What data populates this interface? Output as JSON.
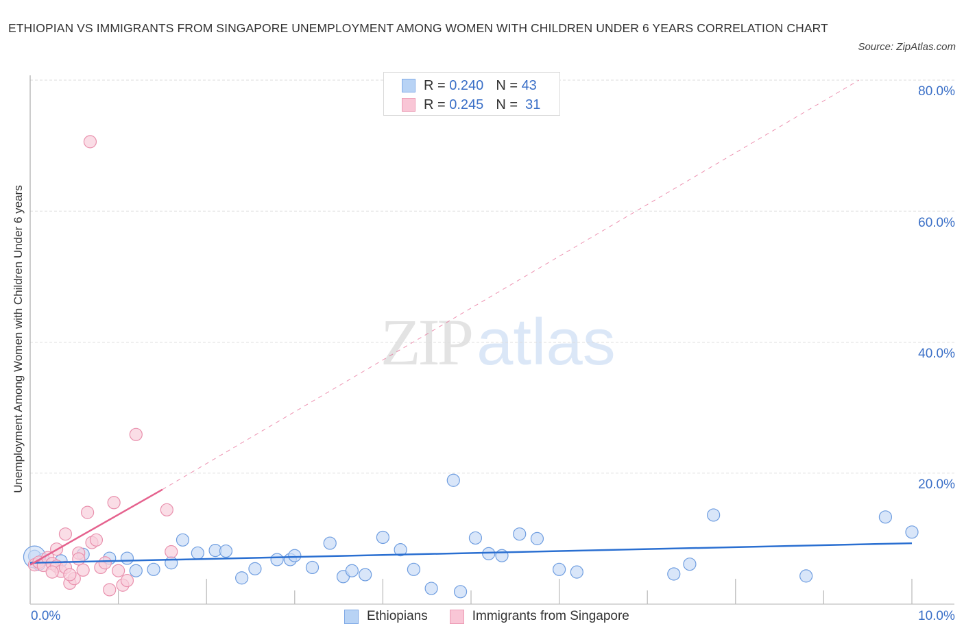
{
  "header": {
    "title": "ETHIOPIAN VS IMMIGRANTS FROM SINGAPORE UNEMPLOYMENT AMONG WOMEN WITH CHILDREN UNDER 6 YEARS CORRELATION CHART",
    "source": "Source: ZipAtlas.com"
  },
  "watermark": {
    "zip": "ZIP",
    "atlas": "atlas"
  },
  "stats_legend": {
    "rows": [
      {
        "r_label": "R =",
        "r_value": "0.240",
        "n_label": "N =",
        "n_value": "43",
        "color": "#b8d3f5",
        "border": "#7fa9e6"
      },
      {
        "r_label": "R =",
        "r_value": "0.245",
        "n_label": "N =",
        "n_value": "31",
        "color": "#f9c6d6",
        "border": "#ec9ab4"
      }
    ]
  },
  "bottom_legend": {
    "items": [
      {
        "label": "Ethiopians",
        "color": "#b8d3f5",
        "border": "#7fa9e6"
      },
      {
        "label": "Immigrants from Singapore",
        "color": "#f9c6d6",
        "border": "#ec9ab4"
      }
    ]
  },
  "axes": {
    "x_min_label": "0.0%",
    "x_max_label": "10.0%",
    "y_ticks": [
      "20.0%",
      "40.0%",
      "60.0%",
      "80.0%"
    ],
    "y_label": "Unemployment Among Women with Children Under 6 years"
  },
  "colors": {
    "blue_fill": "#c9dcf6",
    "blue_stroke": "#6e9de0",
    "blue_line": "#2a6fd1",
    "pink_fill": "#f8cfdc",
    "pink_stroke": "#e990ad",
    "pink_line": "#e5628e",
    "axis_text": "#3a6fc7",
    "grid": "#dddddd"
  },
  "chart_data": {
    "type": "scatter",
    "title": "Ethiopian vs Immigrants from Singapore Unemployment Among Women with Children Under 6 years Correlation Chart",
    "xlabel": "",
    "ylabel": "Unemployment Among Women with Children Under 6 years",
    "xlim": [
      0,
      10
    ],
    "ylim": [
      0,
      80
    ],
    "x_unit": "%",
    "y_unit": "%",
    "grid": true,
    "legend_position": "bottom",
    "series": [
      {
        "name": "Ethiopians",
        "R": 0.24,
        "N": 43,
        "trend": {
          "x0": 0.0,
          "y0": 6.3,
          "x1": 10.0,
          "y1": 9.3
        },
        "points": [
          [
            0.05,
            7.3
          ],
          [
            0.15,
            6.8
          ],
          [
            0.35,
            6.6
          ],
          [
            0.6,
            7.6
          ],
          [
            0.9,
            7.0
          ],
          [
            1.1,
            7.0
          ],
          [
            1.2,
            5.1
          ],
          [
            1.4,
            5.3
          ],
          [
            1.6,
            6.3
          ],
          [
            1.73,
            9.8
          ],
          [
            1.9,
            7.8
          ],
          [
            2.1,
            8.2
          ],
          [
            2.22,
            8.1
          ],
          [
            2.4,
            4.0
          ],
          [
            2.55,
            5.4
          ],
          [
            2.8,
            6.8
          ],
          [
            2.95,
            6.8
          ],
          [
            3.0,
            7.4
          ],
          [
            3.2,
            5.6
          ],
          [
            3.4,
            9.3
          ],
          [
            3.55,
            4.2
          ],
          [
            3.65,
            5.1
          ],
          [
            3.8,
            4.5
          ],
          [
            4.0,
            10.2
          ],
          [
            4.2,
            8.3
          ],
          [
            4.35,
            5.3
          ],
          [
            4.55,
            2.4
          ],
          [
            4.8,
            18.9
          ],
          [
            4.88,
            1.9
          ],
          [
            5.05,
            10.1
          ],
          [
            5.2,
            7.7
          ],
          [
            5.35,
            7.4
          ],
          [
            5.55,
            10.7
          ],
          [
            5.75,
            10.0
          ],
          [
            6.0,
            5.3
          ],
          [
            6.2,
            4.9
          ],
          [
            7.3,
            4.6
          ],
          [
            7.48,
            6.1
          ],
          [
            7.75,
            13.6
          ],
          [
            8.8,
            4.3
          ],
          [
            9.7,
            13.3
          ],
          [
            10.0,
            11.0
          ],
          [
            0.1,
            6.1
          ]
        ]
      },
      {
        "name": "Immigrants from Singapore",
        "R": 0.245,
        "N": 31,
        "trend": {
          "x0": 0.0,
          "y0": 6.0,
          "x1": 1.5,
          "y1": 17.5,
          "extrapolated_to": {
            "x": 9.4,
            "y": 80.0
          }
        },
        "points": [
          [
            0.05,
            6.0
          ],
          [
            0.1,
            6.4
          ],
          [
            0.15,
            5.9
          ],
          [
            0.2,
            7.1
          ],
          [
            0.25,
            6.2
          ],
          [
            0.3,
            5.8
          ],
          [
            0.3,
            8.4
          ],
          [
            0.35,
            5.0
          ],
          [
            0.4,
            5.6
          ],
          [
            0.45,
            3.2
          ],
          [
            0.4,
            10.7
          ],
          [
            0.5,
            3.9
          ],
          [
            0.55,
            7.8
          ],
          [
            0.6,
            5.2
          ],
          [
            0.55,
            6.9
          ],
          [
            0.65,
            14.0
          ],
          [
            0.7,
            9.4
          ],
          [
            0.75,
            9.8
          ],
          [
            0.8,
            5.6
          ],
          [
            0.85,
            6.3
          ],
          [
            0.95,
            15.5
          ],
          [
            0.9,
            2.2
          ],
          [
            1.05,
            2.9
          ],
          [
            1.1,
            3.6
          ],
          [
            1.2,
            25.9
          ],
          [
            1.0,
            5.1
          ],
          [
            1.55,
            14.4
          ],
          [
            1.6,
            8.0
          ],
          [
            0.68,
            70.6
          ],
          [
            0.45,
            4.5
          ],
          [
            0.25,
            4.9
          ]
        ]
      }
    ]
  }
}
